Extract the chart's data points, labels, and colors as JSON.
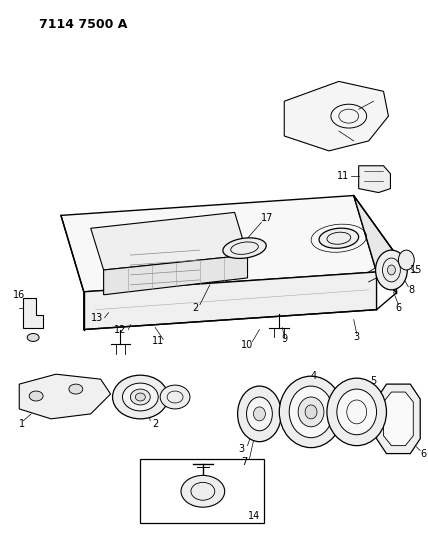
{
  "title": "7114 7500 A",
  "bg_color": "#ffffff",
  "line_color": "#000000",
  "title_fontsize": 9,
  "label_fontsize": 7,
  "figsize": [
    4.28,
    5.33
  ],
  "dpi": 100
}
